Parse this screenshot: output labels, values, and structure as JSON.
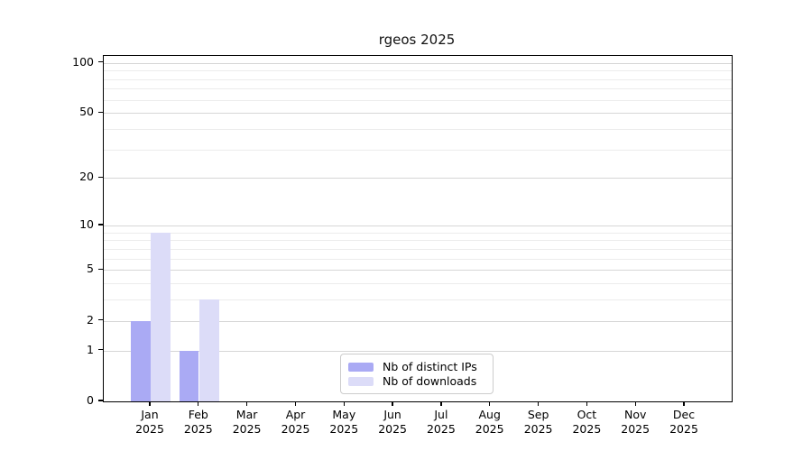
{
  "chart_data": {
    "type": "bar",
    "title": "rgeos 2025",
    "x": {
      "categories": [
        "Jan",
        "Feb",
        "Mar",
        "Apr",
        "May",
        "Jun",
        "Jul",
        "Aug",
        "Sep",
        "Oct",
        "Nov",
        "Dec"
      ],
      "sublabel": "2025"
    },
    "series": [
      {
        "name": "Nb of distinct IPs",
        "color": "#aaaaf4",
        "values": [
          2,
          1,
          0,
          0,
          0,
          0,
          0,
          0,
          0,
          0,
          0,
          0
        ]
      },
      {
        "name": "Nb of downloads",
        "color": "#dcdcf8",
        "values": [
          9,
          3,
          0,
          0,
          0,
          0,
          0,
          0,
          0,
          0,
          0,
          0
        ]
      }
    ],
    "y_axis": {
      "scale": "log1p",
      "tick_labels": [
        0,
        1,
        2,
        5,
        10,
        20,
        50,
        100
      ],
      "minor_gridlines": [
        3,
        4,
        6,
        7,
        8,
        9,
        30,
        40,
        60,
        70,
        80,
        90
      ],
      "ymax": 110
    },
    "legend_entries": [
      "Nb of distinct IPs",
      "Nb of downloads"
    ],
    "grid": true,
    "legend_position": "lower-center"
  },
  "colors": {
    "major_grid": "#d6d6d6",
    "minor_grid": "#ececec",
    "frame": "#000000"
  }
}
